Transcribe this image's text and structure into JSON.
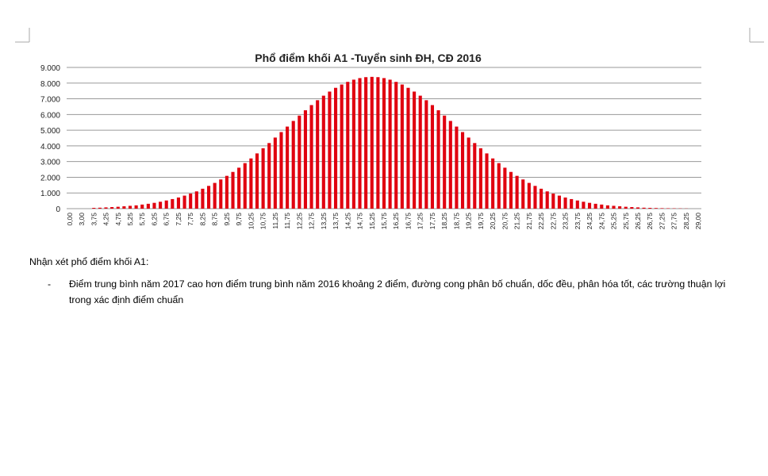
{
  "chart_data": {
    "type": "bar",
    "title": "Phổ điểm khối A1 -Tuyển sinh ĐH, CĐ 2016",
    "categories": [
      "0,00",
      null,
      "3,00",
      null,
      "3,75",
      null,
      "4,25",
      null,
      "4,75",
      null,
      "5,25",
      null,
      "5,75",
      null,
      "6,25",
      null,
      "6,75",
      null,
      "7,25",
      null,
      "7,75",
      null,
      "8,25",
      null,
      "8,75",
      null,
      "9,25",
      null,
      "9,75",
      null,
      "10,25",
      null,
      "10,75",
      null,
      "11,25",
      null,
      "11,75",
      null,
      "12,25",
      null,
      "12,75",
      null,
      "13,25",
      null,
      "13,75",
      null,
      "14,25",
      null,
      "14,75",
      null,
      "15,25",
      null,
      "15,75",
      null,
      "16,25",
      null,
      "16,75",
      null,
      "17,25",
      null,
      "17,75",
      null,
      "18,25",
      null,
      "18,75",
      null,
      "19,25",
      null,
      "19,75",
      null,
      "20,25",
      null,
      "20,75",
      null,
      "21,25",
      null,
      "21,75",
      null,
      "22,25",
      null,
      "22,75",
      null,
      "23,25",
      null,
      "23,75",
      null,
      "24,25",
      null,
      "24,75",
      null,
      "25,25",
      null,
      "25,75",
      null,
      "26,25",
      null,
      "26,75",
      null,
      "27,25",
      null,
      "27,75",
      null,
      "28,25",
      null,
      "29,00"
    ],
    "values": [
      0,
      0,
      0,
      0,
      50,
      60,
      80,
      100,
      120,
      150,
      180,
      210,
      260,
      310,
      370,
      440,
      520,
      610,
      710,
      830,
      960,
      1100,
      1270,
      1450,
      1640,
      1860,
      2090,
      2340,
      2610,
      2900,
      3200,
      3520,
      3850,
      4180,
      4530,
      4880,
      5230,
      5590,
      5930,
      6270,
      6600,
      6910,
      7200,
      7460,
      7700,
      7910,
      8080,
      8220,
      8320,
      8380,
      8400,
      8380,
      8320,
      8220,
      8080,
      7910,
      7700,
      7460,
      7200,
      6910,
      6600,
      6270,
      5930,
      5590,
      5230,
      4880,
      4530,
      4180,
      3850,
      3520,
      3200,
      2900,
      2610,
      2340,
      2090,
      1860,
      1640,
      1450,
      1270,
      1100,
      960,
      830,
      710,
      610,
      520,
      440,
      370,
      310,
      260,
      210,
      180,
      150,
      120,
      100,
      80,
      60,
      50,
      40,
      30,
      25,
      20,
      15,
      10,
      0,
      0
    ],
    "color": "#e0000f",
    "ylim": [
      0,
      9000
    ],
    "yticks": [
      0,
      {
        "value": 1000,
        "label": "1.000"
      },
      {
        "value": 2000,
        "label": "2.000"
      },
      {
        "value": 3000,
        "label": "3.000"
      },
      {
        "value": 4000,
        "label": "4.000"
      },
      {
        "value": 5000,
        "label": "5.000"
      },
      {
        "value": 6000,
        "label": "6.000"
      },
      {
        "value": 7000,
        "label": "7.000"
      },
      {
        "value": 8000,
        "label": "8.000"
      },
      {
        "value": 9000,
        "label": "9.000"
      }
    ],
    "grid": true
  },
  "document": {
    "heading": "Nhận xét phổ điểm khối A1:",
    "bullets": [
      {
        "marker": "-",
        "text": "Điểm trung bình năm 2017 cao hơn điểm trung bình năm 2016 khoảng 2 điểm, đường cong phân bố chuẩn, dốc đều, phân hóa tốt, các trường thuận lợi trong xác định điểm chuẩn"
      }
    ]
  }
}
